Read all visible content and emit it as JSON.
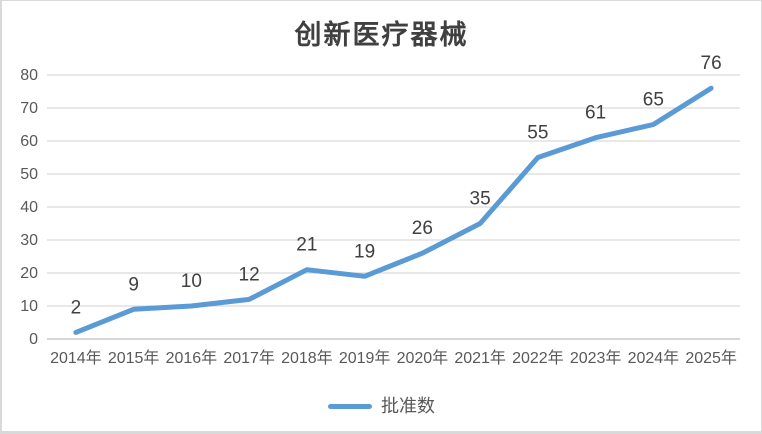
{
  "chart_data": {
    "type": "line",
    "title": "创新医疗器械",
    "categories": [
      "2014年",
      "2015年",
      "2016年",
      "2017年",
      "2018年",
      "2019年",
      "2020年",
      "2021年",
      "2022年",
      "2023年",
      "2024年",
      "2025年"
    ],
    "series": [
      {
        "name": "批准数",
        "values": [
          2,
          9,
          10,
          12,
          21,
          19,
          26,
          35,
          55,
          61,
          65,
          76
        ],
        "color": "#5B9BD5"
      }
    ],
    "xlabel": "",
    "ylabel": "",
    "ylim": [
      0,
      80
    ],
    "ytick_step": 10,
    "yticks": [
      0,
      10,
      20,
      30,
      40,
      50,
      60,
      70,
      80
    ],
    "grid": true,
    "data_labels": true,
    "legend_position": "bottom",
    "markers": false
  },
  "colors": {
    "series_line": "#5B9BD5",
    "gridline": "#D9D9D9",
    "axis_line": "#BFBFBF",
    "axis_text": "#595959",
    "data_label_text": "#404040",
    "title_text": "#404040",
    "frame_border": "#D9D9D9",
    "background": "#FFFFFF"
  }
}
